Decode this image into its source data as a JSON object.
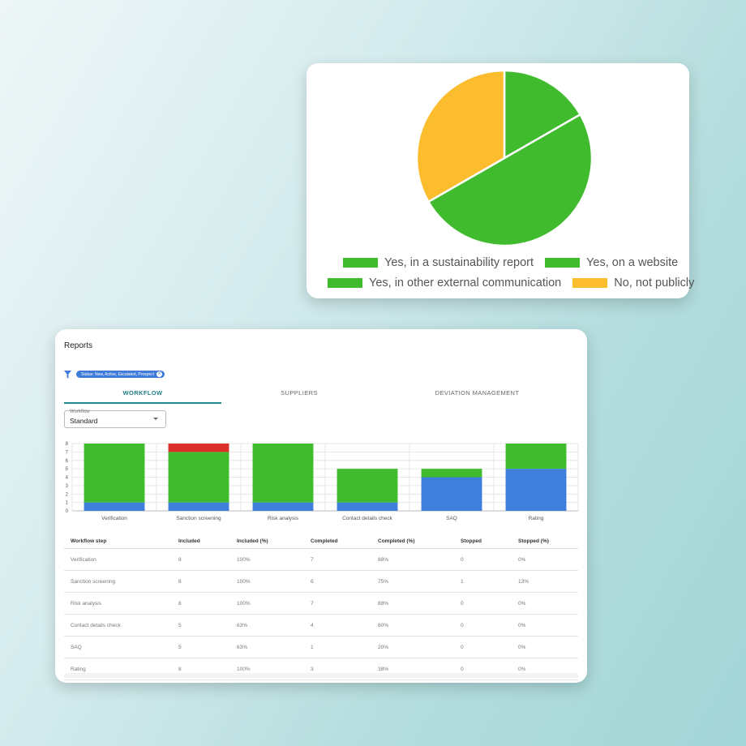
{
  "pie_card": {
    "chart_data": {
      "type": "pie",
      "slices": [
        {
          "label": "Yes, in a sustainability report",
          "value": 16.7,
          "color": "#41bb2e"
        },
        {
          "label": "Yes, on a website",
          "value": 50.0,
          "color": "#41bb2e"
        },
        {
          "label": "Yes, in other external communication",
          "value": 0,
          "color": "#41bb2e"
        },
        {
          "label": "No, not publicly",
          "value": 33.3,
          "color": "#fbbc2e"
        }
      ],
      "legend": [
        {
          "label": "Yes, in a sustainability report",
          "color": "#41bb2e"
        },
        {
          "label": "Yes, on a website",
          "color": "#41bb2e"
        },
        {
          "label": "Yes, in other external communication",
          "color": "#41bb2e"
        },
        {
          "label": "No, not publicly",
          "color": "#fbbc2e"
        }
      ],
      "legend_position": "bottom"
    }
  },
  "reports": {
    "title": "Reports",
    "filter_chip": "Status: New, Active, Escalated, Prospect",
    "tabs": [
      {
        "label": "WORKFLOW",
        "active": true
      },
      {
        "label": "SUPPLIERS",
        "active": false
      },
      {
        "label": "DEVIATION MANAGEMENT",
        "active": false
      }
    ],
    "workflow_select": {
      "label": "Workflow",
      "value": "Standard"
    },
    "chart_data": {
      "type": "bar",
      "stacked": true,
      "categories": [
        "Verification",
        "Sanction screening",
        "Risk analysis",
        "Contact details check",
        "SAQ",
        "Rating"
      ],
      "series": [
        {
          "values": [
            1,
            1,
            1,
            1,
            4,
            5
          ],
          "color": "#3f7edb"
        },
        {
          "values": [
            7,
            6,
            7,
            4,
            1,
            3
          ],
          "color": "#41bb2e"
        },
        {
          "values": [
            0,
            1,
            0,
            0,
            0,
            0
          ],
          "color": "#dc2f2a"
        }
      ],
      "ylim": [
        0,
        8
      ],
      "yticks": [
        "0",
        "1",
        "2",
        "3",
        "4",
        "5",
        "6",
        "7",
        "8"
      ],
      "grid": true
    },
    "table": {
      "headers": [
        "Workflow step",
        "Included",
        "Included (%)",
        "Completed",
        "Completed (%)",
        "Stopped",
        "Stopped (%)"
      ],
      "rows": [
        [
          "Verification",
          "8",
          "100%",
          "7",
          "88%",
          "0",
          "0%"
        ],
        [
          "Sanction screening",
          "8",
          "100%",
          "6",
          "75%",
          "1",
          "13%"
        ],
        [
          "Risk analysis",
          "8",
          "100%",
          "7",
          "88%",
          "0",
          "0%"
        ],
        [
          "Contact details check",
          "5",
          "63%",
          "4",
          "80%",
          "0",
          "0%"
        ],
        [
          "SAQ",
          "5",
          "63%",
          "1",
          "20%",
          "0",
          "0%"
        ],
        [
          "Rating",
          "8",
          "100%",
          "3",
          "38%",
          "0",
          "0%"
        ]
      ]
    }
  }
}
